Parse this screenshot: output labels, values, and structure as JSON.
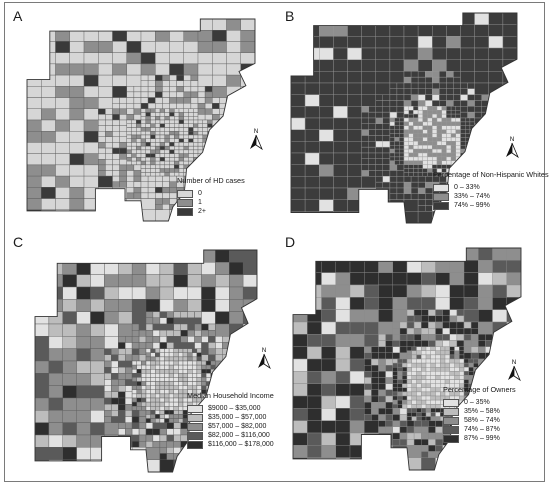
{
  "panels": [
    {
      "letter": "A",
      "legend_title": "Number of HD cases",
      "classes": [
        {
          "label": "0",
          "color": "#d6d6d6"
        },
        {
          "label": "1",
          "color": "#8e8e8e"
        },
        {
          "label": "2+",
          "color": "#3a3a3a"
        }
      ],
      "base_color": "#d6d6d6",
      "north_label": "N"
    },
    {
      "letter": "B",
      "legend_title": "Percentage of Non-Hispanic Whites",
      "classes": [
        {
          "label": "0 – 33%",
          "color": "#e2e2e2"
        },
        {
          "label": "33% – 74%",
          "color": "#8e8e8e"
        },
        {
          "label": "74% – 99%",
          "color": "#3a3a3a"
        }
      ],
      "base_color": "#3c3c3c",
      "north_label": "N"
    },
    {
      "letter": "C",
      "legend_title": "Median Household  Income",
      "classes": [
        {
          "label": "$9000 – $35,000",
          "color": "#e2e2e2"
        },
        {
          "label": "$35,000 – $57,000",
          "color": "#bdbdbd"
        },
        {
          "label": "$57,000 – $82,000",
          "color": "#8e8e8e"
        },
        {
          "label": "$82,000 – $116,000",
          "color": "#5a5a5a"
        },
        {
          "label": "$116,000 – $178,000",
          "color": "#2e2e2e"
        }
      ],
      "base_color": "#8e8e8e",
      "north_label": "N"
    },
    {
      "letter": "D",
      "legend_title": "Percentage of Owners",
      "classes": [
        {
          "label": "0 – 35%",
          "color": "#e2e2e2"
        },
        {
          "label": "35% – 58%",
          "color": "#bdbdbd"
        },
        {
          "label": "58% – 74%",
          "color": "#8e8e8e"
        },
        {
          "label": "74% – 87%",
          "color": "#5a5a5a"
        },
        {
          "label": "87% – 99%",
          "color": "#2e2e2e"
        }
      ],
      "base_color": "#4a4a4a",
      "north_label": "N"
    }
  ]
}
